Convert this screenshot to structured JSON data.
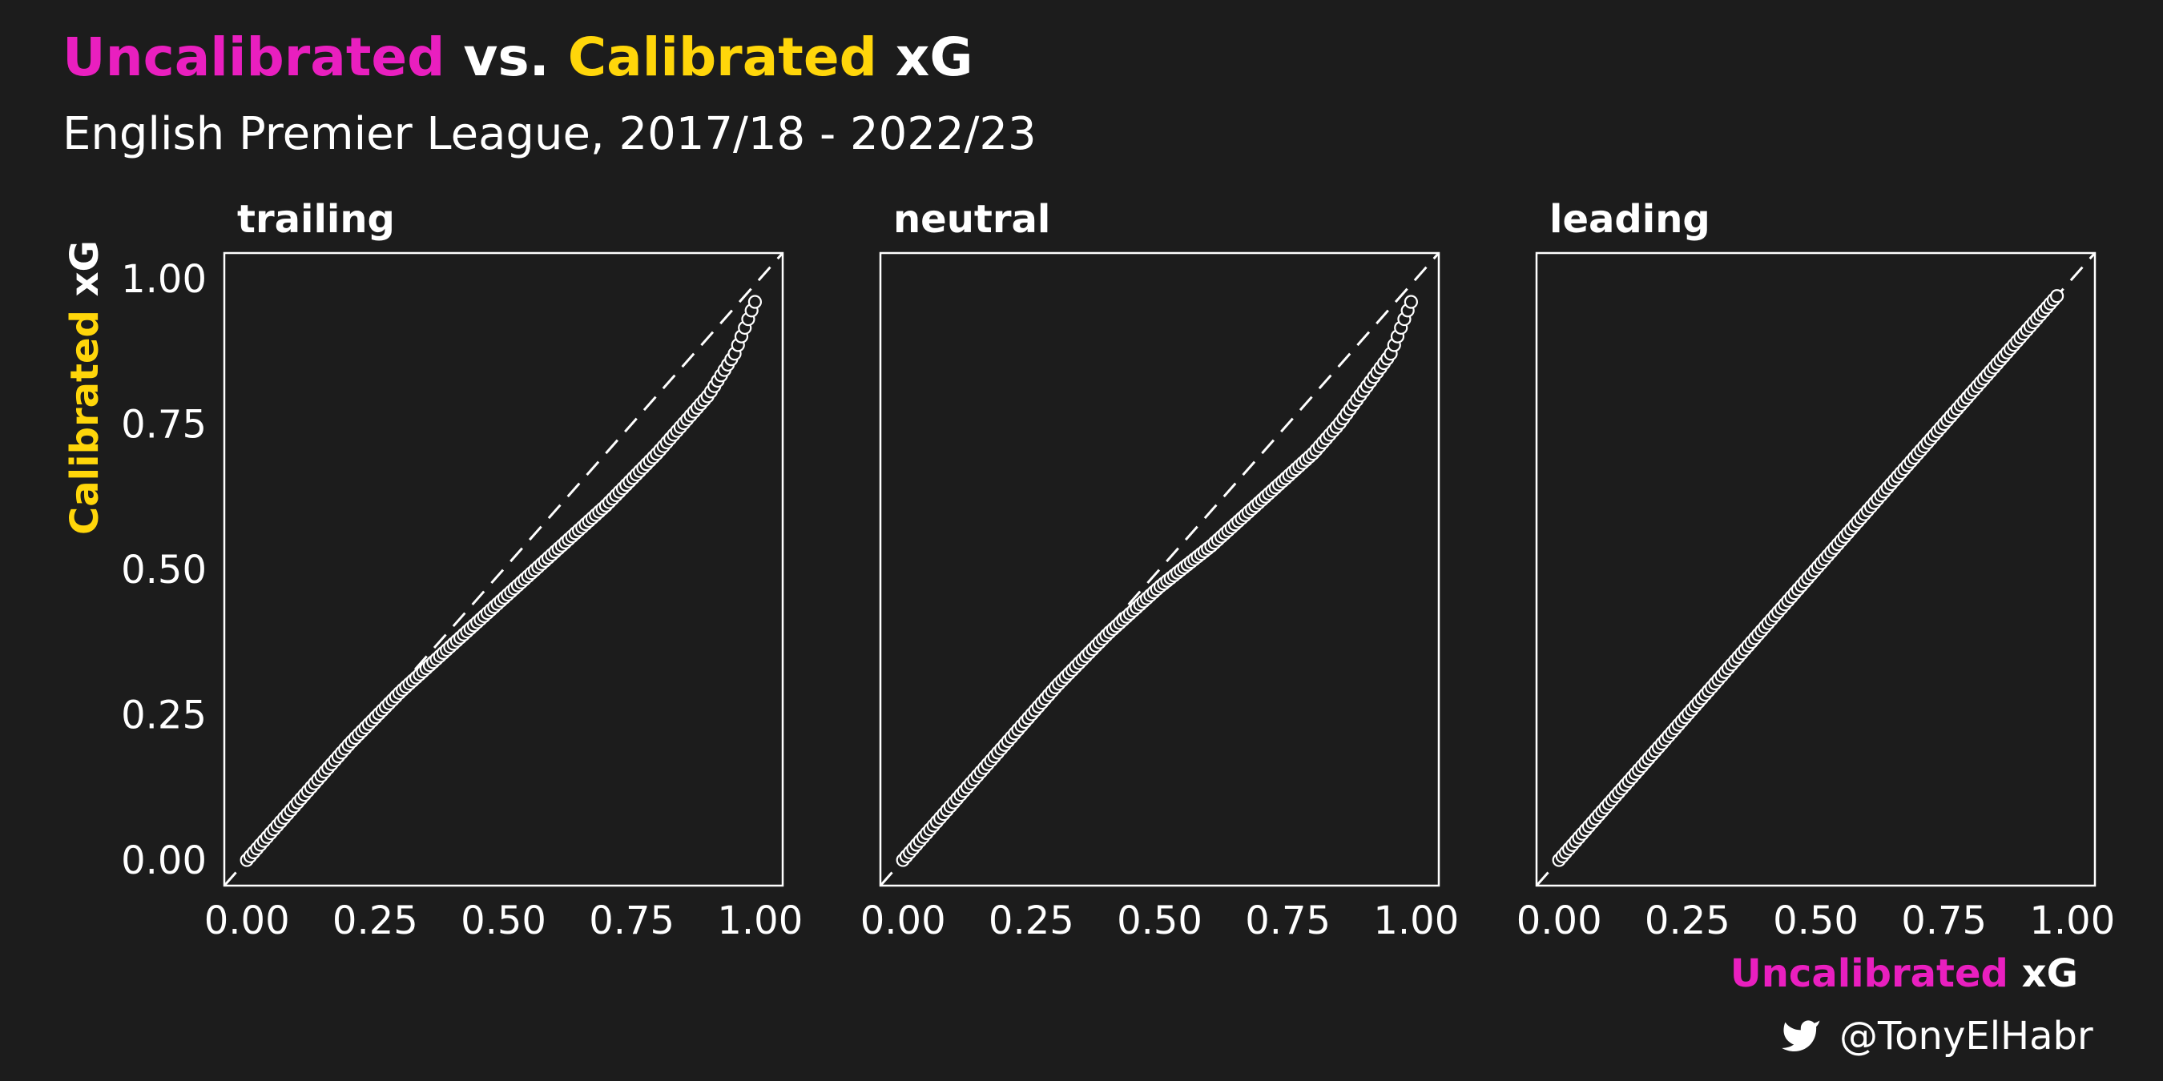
{
  "colors": {
    "background": "#1c1c1c",
    "foreground": "#ffffff",
    "uncalibrated": "#e91fbf",
    "calibrated": "#ffd60a"
  },
  "title": {
    "part1": "Uncalibrated",
    "part2": " vs. ",
    "part3": "Calibrated",
    "part4": " xG"
  },
  "subtitle": "English Premier League, 2017/18 - 2022/23",
  "credit": {
    "icon": "twitter-bird-icon",
    "handle": "@TonyElHabr"
  },
  "chart_data": {
    "type": "scatter",
    "title": "Uncalibrated vs. Calibrated xG",
    "subtitle": "English Premier League, 2017/18 - 2022/23",
    "xlabel": {
      "part1": "Uncalibrated",
      "part2": " xG"
    },
    "ylabel": {
      "part1": "Calibrated",
      "part2": " xG"
    },
    "xlim": [
      0,
      1
    ],
    "ylim": [
      0,
      1
    ],
    "x_ticks": [
      "0.00",
      "0.25",
      "0.50",
      "0.75",
      "1.00"
    ],
    "y_ticks": [
      "0.00",
      "0.25",
      "0.50",
      "0.75",
      "1.00"
    ],
    "reference_line": "y = x (dashed)",
    "grid": false,
    "panels": [
      {
        "name": "trailing",
        "x_max": 0.99,
        "curve": [
          [
            0,
            0
          ],
          [
            0.1,
            0.1
          ],
          [
            0.2,
            0.2
          ],
          [
            0.3,
            0.29
          ],
          [
            0.4,
            0.37
          ],
          [
            0.5,
            0.45
          ],
          [
            0.6,
            0.53
          ],
          [
            0.7,
            0.61
          ],
          [
            0.8,
            0.7
          ],
          [
            0.85,
            0.75
          ],
          [
            0.9,
            0.8
          ],
          [
            0.95,
            0.87
          ],
          [
            0.99,
            0.96
          ]
        ]
      },
      {
        "name": "neutral",
        "x_max": 0.99,
        "curve": [
          [
            0,
            0
          ],
          [
            0.1,
            0.1
          ],
          [
            0.2,
            0.2
          ],
          [
            0.3,
            0.3
          ],
          [
            0.4,
            0.39
          ],
          [
            0.5,
            0.47
          ],
          [
            0.6,
            0.54
          ],
          [
            0.7,
            0.62
          ],
          [
            0.8,
            0.7
          ],
          [
            0.85,
            0.75
          ],
          [
            0.9,
            0.81
          ],
          [
            0.95,
            0.87
          ],
          [
            0.99,
            0.96
          ]
        ]
      },
      {
        "name": "leading",
        "x_max": 0.97,
        "curve": [
          [
            0,
            0
          ],
          [
            0.25,
            0.25
          ],
          [
            0.5,
            0.5
          ],
          [
            0.75,
            0.75
          ],
          [
            0.97,
            0.97
          ]
        ]
      }
    ]
  }
}
